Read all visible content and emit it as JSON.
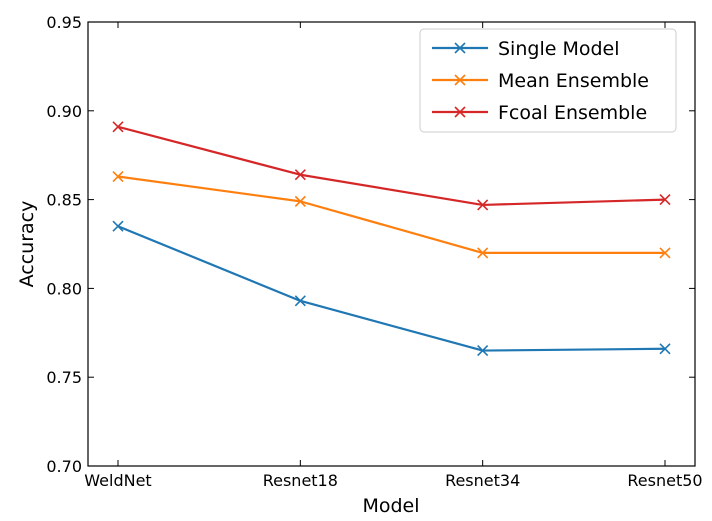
{
  "chart_data": {
    "type": "line",
    "categories": [
      "WeldNet",
      "Resnet18",
      "Resnet34",
      "Resnet50"
    ],
    "xlabel": "Model",
    "ylabel": "Accuracy",
    "ylim": [
      0.7,
      0.95
    ],
    "yticks": [
      "0.70",
      "0.75",
      "0.80",
      "0.85",
      "0.90",
      "0.95"
    ],
    "grid": false,
    "legend": "top-right",
    "series": [
      {
        "name": "Single Model",
        "color": "#1f77b4",
        "values": [
          0.835,
          0.793,
          0.765,
          0.766
        ]
      },
      {
        "name": "Mean Ensemble",
        "color": "#ff7f0e",
        "values": [
          0.863,
          0.849,
          0.82,
          0.82
        ]
      },
      {
        "name": "Fcoal Ensemble",
        "color": "#d62728",
        "values": [
          0.891,
          0.864,
          0.847,
          0.85
        ]
      }
    ]
  }
}
